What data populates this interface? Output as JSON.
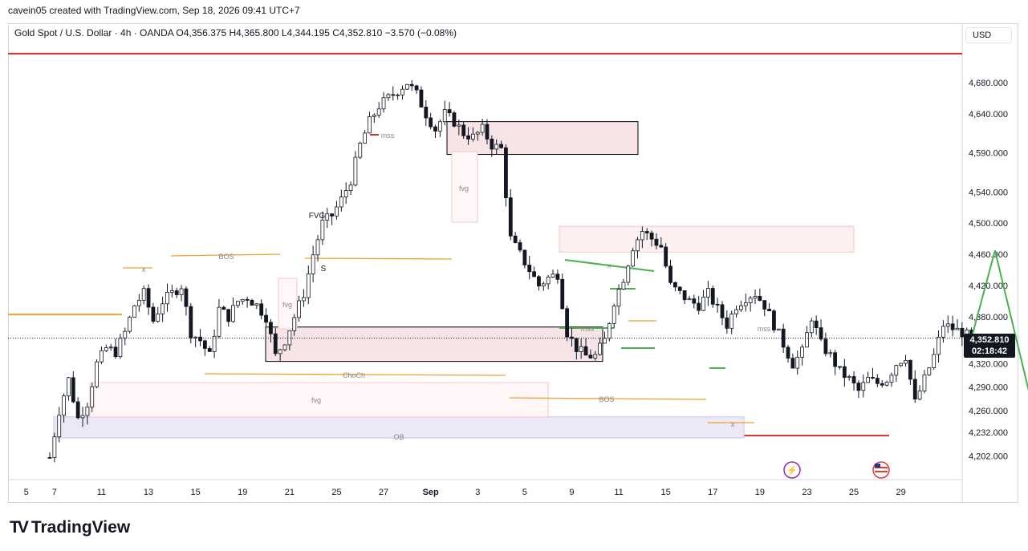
{
  "header": {
    "attribution": "cavein05 created with TradingView.com, Sep 18, 2026 09:41 UTC+7"
  },
  "legend": {
    "text": "Gold Spot / U.S. Dollar · 4h · OANDA  O4,356.375  H4,365.800  L4,344.195  C4,352.810  −3.570 (−0.08%)"
  },
  "currency": "USD",
  "last_price": {
    "price": "4,352.810",
    "countdown": "02:18:42"
  },
  "brand": {
    "logo": "TV",
    "name": "TradingView"
  },
  "colors": {
    "up": "#131722",
    "down": "#131722",
    "zone_fill": "#f6e4e6",
    "zone_border": "#000000",
    "fvg_border": "#f3c7c9",
    "ob_fill": "#ece8f7",
    "orange": "#f0a030",
    "red": "#d32f2f",
    "green": "#4caf50"
  },
  "chart_data": {
    "type": "candlestick",
    "instrument": "Gold Spot / U.S. Dollar",
    "timeframe": "4h",
    "ylim": [
      4185,
      4720
    ],
    "y_ticks": [
      "4,680.000",
      "4,640.000",
      "4,590.000",
      "4,540.000",
      "4,500.000",
      "4,460.000",
      "4,420.000",
      "4,380.000",
      "4,320.000",
      "4,290.000",
      "4,260.000",
      "4,232.000",
      "4,202.000"
    ],
    "y_tick_values": [
      4680,
      4640,
      4590,
      4540,
      4500,
      4460,
      4420,
      4380,
      4320,
      4290,
      4260,
      4232,
      4202
    ],
    "x_ticks": [
      "5",
      "7",
      "11",
      "13",
      "15",
      "19",
      "21",
      "25",
      "27",
      "Sep",
      "3",
      "5",
      "9",
      "11",
      "15",
      "17",
      "19",
      "23",
      "25",
      "29"
    ],
    "x_tick_index": [
      -5,
      1,
      11,
      21,
      31,
      41,
      51,
      61,
      71,
      81,
      91,
      101,
      111,
      121,
      131,
      141,
      151,
      161,
      171,
      181
    ],
    "path_anchors": [
      [
        0,
        4200
      ],
      [
        2,
        4260
      ],
      [
        4,
        4300
      ],
      [
        6,
        4250
      ],
      [
        8,
        4270
      ],
      [
        10,
        4320
      ],
      [
        12,
        4340
      ],
      [
        14,
        4335
      ],
      [
        16,
        4360
      ],
      [
        18,
        4395
      ],
      [
        20,
        4410
      ],
      [
        22,
        4375
      ],
      [
        24,
        4400
      ],
      [
        26,
        4410
      ],
      [
        28,
        4420
      ],
      [
        30,
        4360
      ],
      [
        32,
        4350
      ],
      [
        34,
        4330
      ],
      [
        36,
        4390
      ],
      [
        38,
        4380
      ],
      [
        40,
        4400
      ],
      [
        42,
        4405
      ],
      [
        44,
        4395
      ],
      [
        46,
        4380
      ],
      [
        48,
        4330
      ],
      [
        50,
        4350
      ],
      [
        52,
        4380
      ],
      [
        54,
        4410
      ],
      [
        56,
        4460
      ],
      [
        58,
        4500
      ],
      [
        60,
        4510
      ],
      [
        62,
        4530
      ],
      [
        64,
        4555
      ],
      [
        66,
        4600
      ],
      [
        68,
        4630
      ],
      [
        70,
        4650
      ],
      [
        72,
        4660
      ],
      [
        74,
        4670
      ],
      [
        76,
        4680
      ],
      [
        78,
        4665
      ],
      [
        80,
        4640
      ],
      [
        82,
        4620
      ],
      [
        84,
        4640
      ],
      [
        86,
        4630
      ],
      [
        88,
        4615
      ],
      [
        90,
        4610
      ],
      [
        92,
        4620
      ],
      [
        94,
        4600
      ],
      [
        96,
        4595
      ],
      [
        98,
        4480
      ],
      [
        100,
        4460
      ],
      [
        102,
        4440
      ],
      [
        104,
        4420
      ],
      [
        106,
        4430
      ],
      [
        108,
        4435
      ],
      [
        110,
        4360
      ],
      [
        112,
        4340
      ],
      [
        114,
        4330
      ],
      [
        116,
        4330
      ],
      [
        118,
        4350
      ],
      [
        120,
        4400
      ],
      [
        122,
        4430
      ],
      [
        124,
        4470
      ],
      [
        126,
        4490
      ],
      [
        128,
        4480
      ],
      [
        130,
        4470
      ],
      [
        132,
        4420
      ],
      [
        134,
        4410
      ],
      [
        136,
        4400
      ],
      [
        138,
        4395
      ],
      [
        140,
        4410
      ],
      [
        142,
        4390
      ],
      [
        144,
        4370
      ],
      [
        146,
        4395
      ],
      [
        148,
        4405
      ],
      [
        150,
        4410
      ],
      [
        152,
        4395
      ],
      [
        154,
        4370
      ],
      [
        156,
        4345
      ],
      [
        158,
        4320
      ],
      [
        160,
        4335
      ],
      [
        162,
        4380
      ],
      [
        164,
        4345
      ],
      [
        166,
        4330
      ],
      [
        168,
        4310
      ],
      [
        170,
        4300
      ],
      [
        172,
        4285
      ],
      [
        174,
        4300
      ],
      [
        176,
        4295
      ],
      [
        178,
        4300
      ],
      [
        180,
        4320
      ],
      [
        182,
        4330
      ],
      [
        184,
        4270
      ],
      [
        186,
        4300
      ],
      [
        188,
        4330
      ],
      [
        190,
        4370
      ],
      [
        192,
        4365
      ],
      [
        194,
        4360
      ],
      [
        196,
        4352.81
      ]
    ],
    "projection": [
      [
        196,
        4352.81
      ],
      [
        201,
        4465
      ],
      [
        210,
        4240
      ]
    ],
    "annotations": [
      {
        "text": "BOS",
        "y": 4455
      },
      {
        "text": "FVG",
        "y": 4505
      },
      {
        "text": "S",
        "y": 4440
      },
      {
        "text": "fvg",
        "y": 4387
      },
      {
        "text": "ChoCh",
        "y": 4312
      },
      {
        "text": "fvg",
        "y": 4288
      },
      {
        "text": "OB",
        "y": 4245
      },
      {
        "text": "mss",
        "y": 4610
      },
      {
        "text": "fvg",
        "y": 4540
      },
      {
        "text": "BOS",
        "y": 4285
      },
      {
        "text": "mss",
        "y": 4370
      },
      {
        "text": "mss",
        "y": 4370
      },
      {
        "text": "x",
        "y": 4440
      },
      {
        "text": "x",
        "y": 4437
      },
      {
        "text": "x",
        "y": 4257
      }
    ],
    "zones": [
      {
        "kind": "supply",
        "ytop": 4630,
        "ybot": 4588
      },
      {
        "kind": "supply",
        "ytop": 4496,
        "ybot": 4463
      },
      {
        "kind": "demand",
        "ytop": 4367,
        "ybot": 4323
      },
      {
        "kind": "ob",
        "ytop": 4252,
        "ybot": 4225
      }
    ],
    "levels": [
      {
        "name": "resistance",
        "value": 4717,
        "color": "red"
      },
      {
        "name": "support",
        "value": 4228,
        "color": "red"
      },
      {
        "name": "left-level",
        "value": 4383,
        "color": "orange"
      }
    ]
  }
}
